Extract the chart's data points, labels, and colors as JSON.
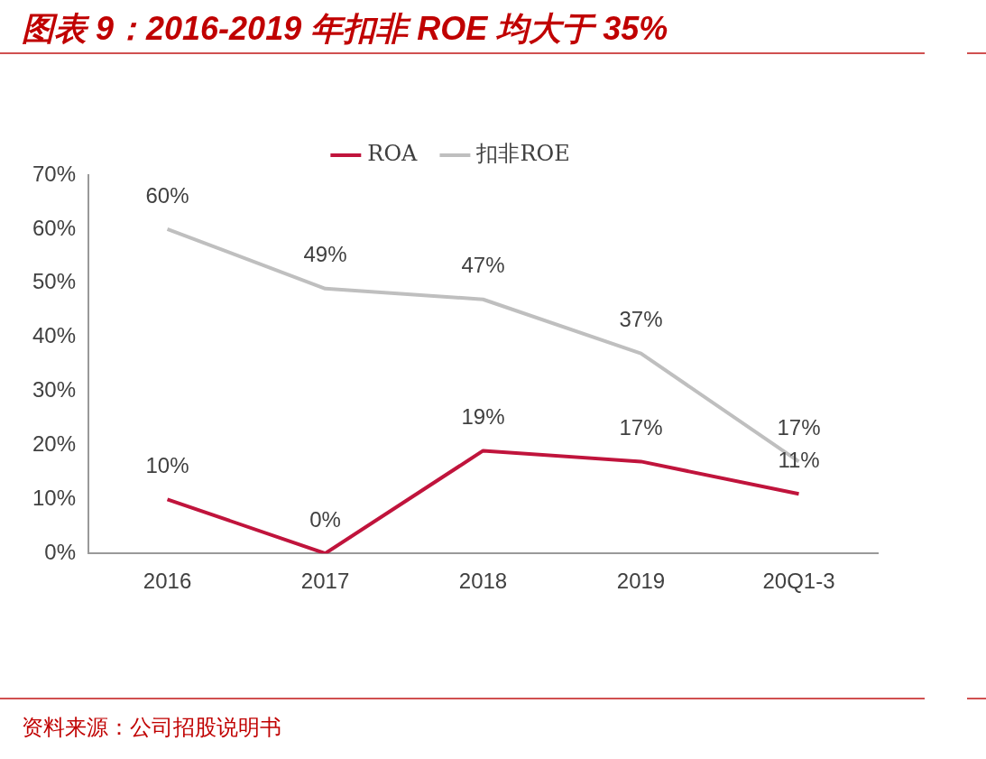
{
  "chart_data": {
    "type": "line",
    "title": "图表 9：2016-2019 年扣非 ROE 均大于 35%",
    "categories": [
      "2016",
      "2017",
      "2018",
      "2019",
      "20Q1-3"
    ],
    "series": [
      {
        "name": "ROA",
        "color": "#c0143c",
        "values": [
          10,
          0,
          19,
          17,
          11
        ],
        "value_labels": [
          "10%",
          "0%",
          "19%",
          "17%",
          "11%"
        ]
      },
      {
        "name": "扣非ROE",
        "color": "#bfbfbf",
        "values": [
          60,
          49,
          47,
          37,
          17
        ],
        "value_labels": [
          "60%",
          "49%",
          "47%",
          "37%",
          "17%"
        ]
      }
    ],
    "ylim": [
      0,
      70
    ],
    "yticks": [
      {
        "value": 0,
        "label": "0%"
      },
      {
        "value": 10,
        "label": "10%"
      },
      {
        "value": 20,
        "label": "20%"
      },
      {
        "value": 30,
        "label": "30%"
      },
      {
        "value": 40,
        "label": "40%"
      },
      {
        "value": 50,
        "label": "50%"
      },
      {
        "value": 60,
        "label": "60%"
      },
      {
        "value": 70,
        "label": "70%"
      }
    ],
    "legend": "top",
    "grid": false,
    "marker": "none",
    "line_style": "solid",
    "annotations": [
      "资料来源：公司招股说明书"
    ]
  }
}
